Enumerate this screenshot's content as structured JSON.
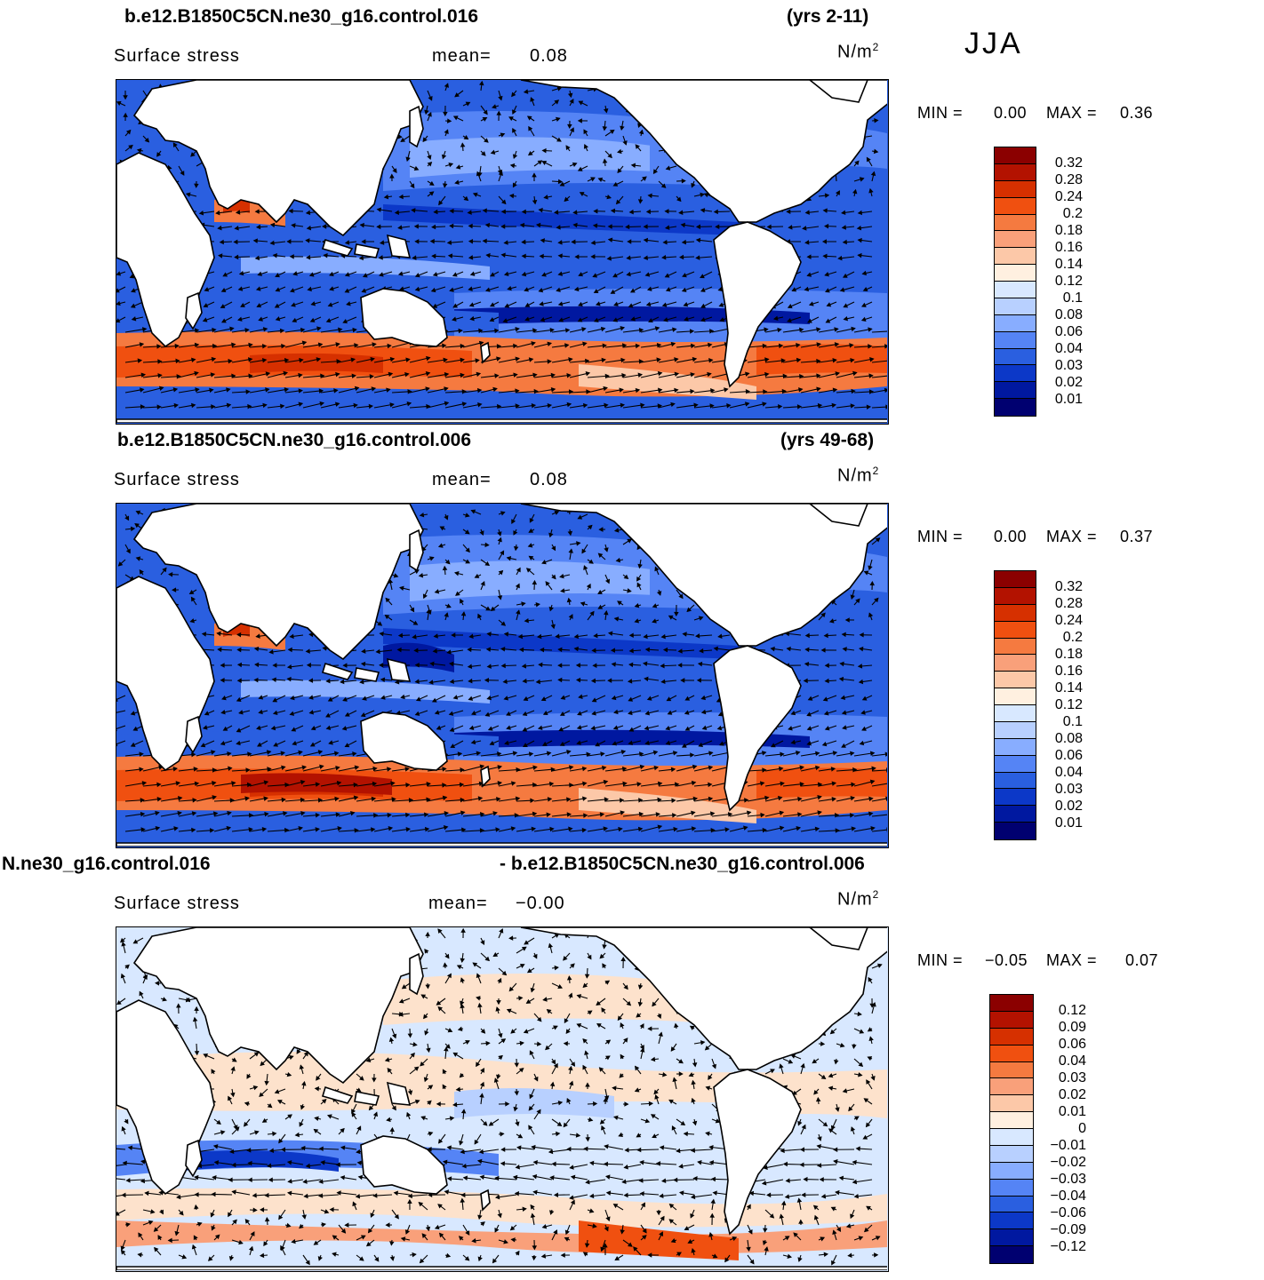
{
  "season": "JJA",
  "panels": [
    {
      "case_title": "b.e12.B1850C5CN.ne30_g16.control.016",
      "years": "(yrs 2-11)",
      "variable": "Surface stress",
      "mean_label": "mean=",
      "mean_value": "0.08",
      "units": "N/m",
      "units_power": "2",
      "min_label": "MIN =",
      "min_value": "0.00",
      "max_label": "MAX =",
      "max_value": "0.36",
      "colorbar_labels": [
        "0.32",
        "0.28",
        "0.24",
        "0.2",
        "0.18",
        "0.16",
        "0.14",
        "0.12",
        "0.1",
        "0.08",
        "0.06",
        "0.04",
        "0.03",
        "0.02",
        "0.01"
      ]
    },
    {
      "case_title": "b.e12.B1850C5CN.ne30_g16.control.006",
      "years": "(yrs 49-68)",
      "variable": "Surface stress",
      "mean_label": "mean=",
      "mean_value": "0.08",
      "units": "N/m",
      "units_power": "2",
      "min_label": "MIN =",
      "min_value": "0.00",
      "max_label": "MAX =",
      "max_value": "0.37",
      "colorbar_labels": [
        "0.32",
        "0.28",
        "0.24",
        "0.2",
        "0.18",
        "0.16",
        "0.14",
        "0.12",
        "0.1",
        "0.08",
        "0.06",
        "0.04",
        "0.03",
        "0.02",
        "0.01"
      ]
    },
    {
      "case_title": "N.ne30_g16.control.016",
      "years": "- b.e12.B1850C5CN.ne30_g16.control.006",
      "variable": "Surface stress",
      "mean_label": "mean=",
      "mean_value": "−0.00",
      "units": "N/m",
      "units_power": "2",
      "min_label": "MIN =",
      "min_value": "−0.05",
      "max_label": "MAX =",
      "max_value": "0.07",
      "colorbar_labels": [
        "0.12",
        "0.09",
        "0.06",
        "0.04",
        "0.03",
        "0.02",
        "0.01",
        "0",
        "−0.01",
        "−0.02",
        "−0.03",
        "−0.04",
        "−0.06",
        "−0.09",
        "−0.12"
      ]
    }
  ],
  "colors": {
    "abs_scale": [
      "#8b0000",
      "#b31200",
      "#d63000",
      "#f05010",
      "#f57a40",
      "#f9a07a",
      "#fcc8a8",
      "#fff0e0",
      "#d8e8ff",
      "#b8d0ff",
      "#88adff",
      "#5584f5",
      "#2a5fe0",
      "#0c38c8",
      "#0018a0",
      "#000070"
    ],
    "diff_scale": [
      "#8b0000",
      "#b31200",
      "#d63000",
      "#f05010",
      "#f57a40",
      "#f9a07a",
      "#fcc8a8",
      "#fff0e0",
      "#d8e8ff",
      "#b8d0ff",
      "#88adff",
      "#5584f5",
      "#2a5fe0",
      "#0c38c8",
      "#0018a0",
      "#000070"
    ],
    "land": "#ffffff",
    "coast": "#000000",
    "vector": "#000000"
  },
  "chart_data": [
    {
      "type": "heatmap",
      "title": "b.e12.B1850C5CN.ne30_g16.control.016 (yrs 2-11)",
      "subtitle": "Surface stress mean= 0.08",
      "units": "N/m2",
      "season": "JJA",
      "colorbar_levels": [
        0.32,
        0.28,
        0.24,
        0.2,
        0.18,
        0.16,
        0.14,
        0.12,
        0.1,
        0.08,
        0.06,
        0.04,
        0.03,
        0.02,
        0.01
      ],
      "min": 0.0,
      "max": 0.36,
      "mean": 0.08,
      "overlay": "vector"
    },
    {
      "type": "heatmap",
      "title": "b.e12.B1850C5CN.ne30_g16.control.006 (yrs 49-68)",
      "subtitle": "Surface stress mean= 0.08",
      "units": "N/m2",
      "season": "JJA",
      "colorbar_levels": [
        0.32,
        0.28,
        0.24,
        0.2,
        0.18,
        0.16,
        0.14,
        0.12,
        0.1,
        0.08,
        0.06,
        0.04,
        0.03,
        0.02,
        0.01
      ],
      "min": 0.0,
      "max": 0.37,
      "mean": 0.08,
      "overlay": "vector"
    },
    {
      "type": "heatmap",
      "title": "N.ne30_g16.control.016 - b.e12.B1850C5CN.ne30_g16.control.006",
      "subtitle": "Surface stress mean= -0.00",
      "units": "N/m2",
      "season": "JJA",
      "colorbar_levels": [
        0.12,
        0.09,
        0.06,
        0.04,
        0.03,
        0.02,
        0.01,
        0,
        -0.01,
        -0.02,
        -0.03,
        -0.04,
        -0.06,
        -0.09,
        -0.12
      ],
      "min": -0.05,
      "max": 0.07,
      "mean": -0.0,
      "overlay": "vector"
    }
  ]
}
